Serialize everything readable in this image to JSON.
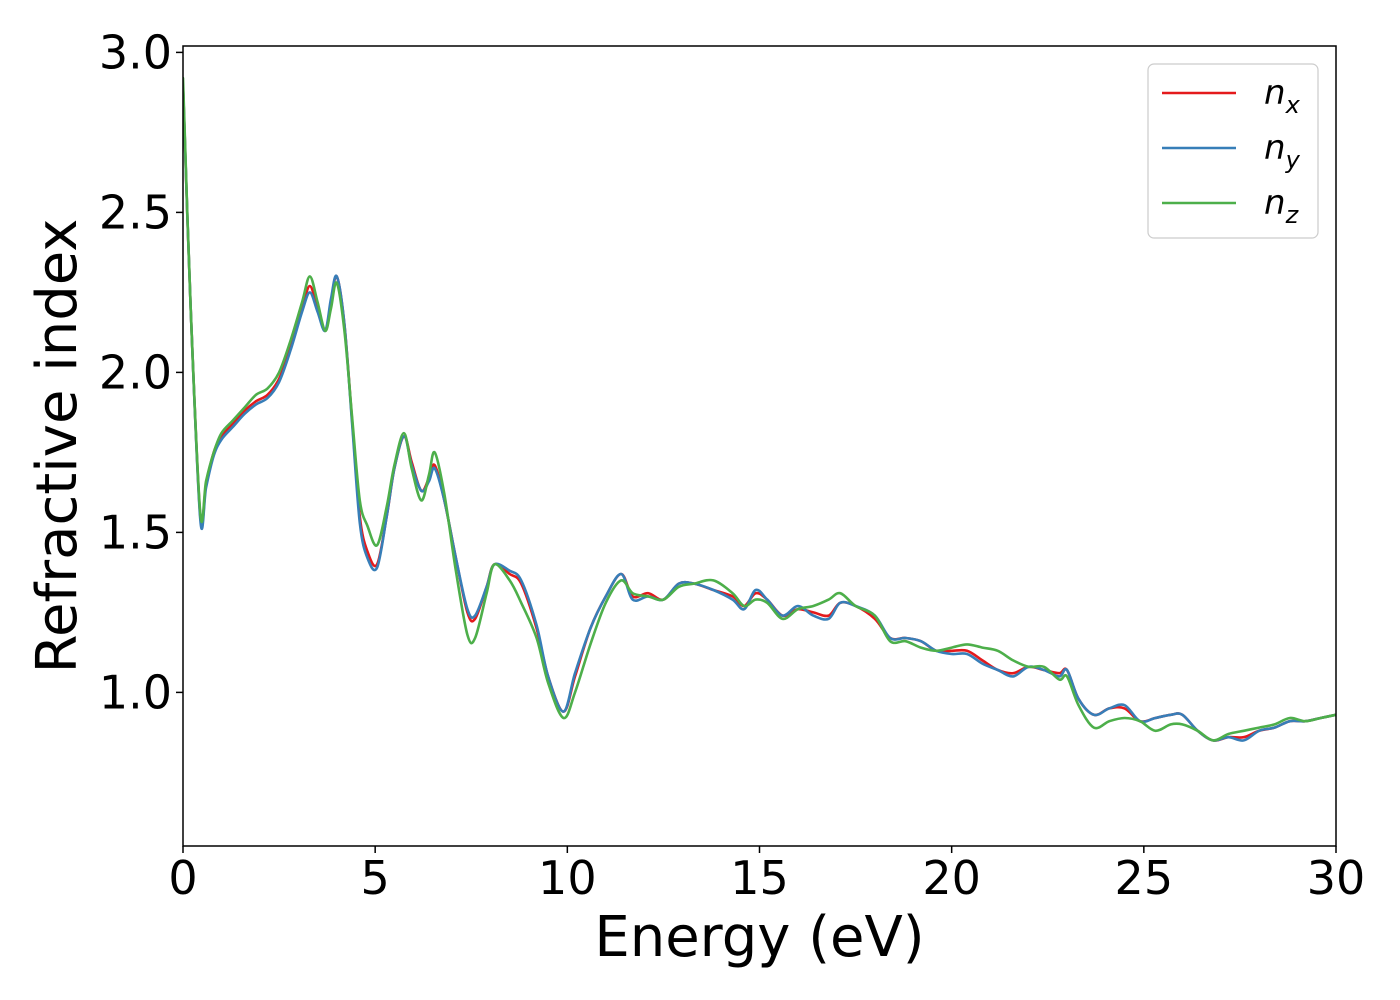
{
  "chart_data": {
    "type": "line",
    "xlabel": "Energy (eV)",
    "ylabel": "Refractive index",
    "xlim": [
      0,
      30
    ],
    "ylim": [
      0.52,
      3.02
    ],
    "xticks": [
      "0",
      "5",
      "10",
      "15",
      "20",
      "25",
      "30"
    ],
    "yticks": [
      "1.0",
      "1.5",
      "2.0",
      "2.5",
      "3.0"
    ],
    "grid": false,
    "legend_position": "top-right",
    "series": [
      {
        "name": "n_x",
        "legend_base": "n",
        "legend_sub": "x",
        "color": "#e41a1c",
        "x": [
          0.0,
          0.2,
          0.45,
          0.6,
          0.8,
          1.0,
          1.3,
          1.6,
          1.9,
          2.2,
          2.5,
          2.8,
          3.1,
          3.3,
          3.5,
          3.7,
          3.85,
          4.0,
          4.2,
          4.4,
          4.6,
          4.8,
          5.05,
          5.3,
          5.5,
          5.75,
          5.95,
          6.2,
          6.4,
          6.55,
          6.8,
          7.1,
          7.4,
          7.6,
          7.9,
          8.1,
          8.5,
          8.8,
          9.2,
          9.5,
          9.9,
          10.2,
          10.6,
          11.0,
          11.4,
          11.7,
          12.1,
          12.5,
          12.9,
          13.3,
          13.8,
          14.3,
          14.6,
          14.9,
          15.2,
          15.6,
          16.0,
          16.4,
          16.8,
          17.1,
          17.5,
          18.0,
          18.4,
          18.8,
          19.2,
          19.6,
          20.0,
          20.4,
          20.8,
          21.2,
          21.6,
          22.0,
          22.4,
          22.8,
          23.0,
          23.3,
          23.7,
          24.1,
          24.5,
          24.9,
          25.3,
          25.7,
          26.0,
          26.4,
          26.8,
          27.2,
          27.6,
          28.0,
          28.4,
          28.8,
          29.2,
          29.6,
          30.0
        ],
        "y": [
          2.9,
          2.2,
          1.55,
          1.65,
          1.75,
          1.8,
          1.84,
          1.88,
          1.91,
          1.93,
          1.98,
          2.08,
          2.2,
          2.27,
          2.2,
          2.13,
          2.22,
          2.3,
          2.15,
          1.85,
          1.55,
          1.44,
          1.4,
          1.55,
          1.7,
          1.8,
          1.72,
          1.63,
          1.67,
          1.71,
          1.6,
          1.42,
          1.25,
          1.23,
          1.33,
          1.4,
          1.37,
          1.34,
          1.2,
          1.05,
          0.94,
          1.05,
          1.2,
          1.3,
          1.37,
          1.3,
          1.31,
          1.29,
          1.34,
          1.34,
          1.32,
          1.3,
          1.27,
          1.31,
          1.29,
          1.24,
          1.26,
          1.25,
          1.24,
          1.28,
          1.27,
          1.23,
          1.17,
          1.17,
          1.16,
          1.13,
          1.13,
          1.13,
          1.1,
          1.07,
          1.06,
          1.08,
          1.07,
          1.06,
          1.07,
          0.98,
          0.93,
          0.95,
          0.95,
          0.91,
          0.92,
          0.93,
          0.93,
          0.88,
          0.85,
          0.86,
          0.86,
          0.88,
          0.89,
          0.91,
          0.91,
          0.92,
          0.93
        ]
      },
      {
        "name": "n_y",
        "legend_base": "n",
        "legend_sub": "y",
        "color": "#377eb8",
        "x": [
          0.0,
          0.2,
          0.45,
          0.6,
          0.8,
          1.0,
          1.3,
          1.6,
          1.9,
          2.2,
          2.5,
          2.8,
          3.1,
          3.3,
          3.5,
          3.7,
          3.85,
          4.0,
          4.2,
          4.4,
          4.6,
          4.8,
          5.05,
          5.3,
          5.5,
          5.75,
          5.95,
          6.2,
          6.4,
          6.55,
          6.8,
          7.1,
          7.4,
          7.6,
          7.9,
          8.1,
          8.5,
          8.8,
          9.2,
          9.5,
          9.9,
          10.2,
          10.6,
          11.0,
          11.4,
          11.7,
          12.1,
          12.5,
          12.9,
          13.3,
          13.8,
          14.3,
          14.6,
          14.9,
          15.2,
          15.6,
          16.0,
          16.4,
          16.8,
          17.1,
          17.5,
          18.0,
          18.4,
          18.8,
          19.2,
          19.6,
          20.0,
          20.4,
          20.8,
          21.2,
          21.6,
          22.0,
          22.4,
          22.8,
          23.0,
          23.3,
          23.7,
          24.1,
          24.5,
          24.9,
          25.3,
          25.7,
          26.0,
          26.4,
          26.8,
          27.2,
          27.6,
          28.0,
          28.4,
          28.8,
          29.2,
          29.6,
          30.0
        ],
        "y": [
          2.9,
          2.2,
          1.54,
          1.64,
          1.74,
          1.79,
          1.83,
          1.87,
          1.9,
          1.92,
          1.97,
          2.07,
          2.19,
          2.25,
          2.19,
          2.13,
          2.23,
          2.3,
          2.15,
          1.84,
          1.53,
          1.42,
          1.39,
          1.55,
          1.7,
          1.8,
          1.71,
          1.63,
          1.66,
          1.7,
          1.6,
          1.42,
          1.26,
          1.24,
          1.33,
          1.4,
          1.38,
          1.35,
          1.21,
          1.05,
          0.94,
          1.06,
          1.2,
          1.3,
          1.37,
          1.29,
          1.3,
          1.29,
          1.34,
          1.34,
          1.32,
          1.29,
          1.26,
          1.32,
          1.29,
          1.24,
          1.27,
          1.24,
          1.23,
          1.28,
          1.27,
          1.24,
          1.17,
          1.17,
          1.16,
          1.13,
          1.12,
          1.12,
          1.09,
          1.07,
          1.05,
          1.08,
          1.07,
          1.05,
          1.07,
          0.98,
          0.93,
          0.95,
          0.96,
          0.91,
          0.92,
          0.93,
          0.93,
          0.88,
          0.85,
          0.86,
          0.85,
          0.88,
          0.89,
          0.91,
          0.91,
          0.92,
          0.93
        ]
      },
      {
        "name": "n_z",
        "legend_base": "n",
        "legend_sub": "z",
        "color": "#4daf4a",
        "x": [
          0.0,
          0.2,
          0.45,
          0.6,
          0.8,
          1.0,
          1.3,
          1.6,
          1.9,
          2.2,
          2.5,
          2.8,
          3.1,
          3.3,
          3.5,
          3.7,
          3.85,
          4.0,
          4.2,
          4.4,
          4.6,
          4.8,
          5.05,
          5.3,
          5.5,
          5.75,
          5.95,
          6.2,
          6.4,
          6.55,
          6.8,
          7.1,
          7.4,
          7.6,
          7.9,
          8.1,
          8.5,
          8.8,
          9.2,
          9.5,
          9.9,
          10.2,
          10.6,
          11.0,
          11.4,
          11.7,
          12.1,
          12.5,
          12.9,
          13.3,
          13.8,
          14.3,
          14.6,
          14.9,
          15.2,
          15.6,
          16.0,
          16.4,
          16.8,
          17.1,
          17.5,
          18.0,
          18.4,
          18.8,
          19.2,
          19.6,
          20.0,
          20.4,
          20.8,
          21.2,
          21.6,
          22.0,
          22.4,
          22.8,
          23.0,
          23.3,
          23.7,
          24.1,
          24.5,
          24.9,
          25.3,
          25.7,
          26.0,
          26.4,
          26.8,
          27.2,
          27.6,
          28.0,
          28.4,
          28.8,
          29.2,
          29.6,
          30.0
        ],
        "y": [
          2.92,
          2.2,
          1.56,
          1.66,
          1.75,
          1.81,
          1.85,
          1.89,
          1.93,
          1.95,
          2.0,
          2.1,
          2.22,
          2.3,
          2.22,
          2.13,
          2.2,
          2.28,
          2.13,
          1.86,
          1.6,
          1.52,
          1.46,
          1.58,
          1.71,
          1.81,
          1.7,
          1.6,
          1.68,
          1.75,
          1.62,
          1.38,
          1.18,
          1.17,
          1.31,
          1.4,
          1.35,
          1.28,
          1.17,
          1.03,
          0.92,
          1.0,
          1.15,
          1.28,
          1.35,
          1.31,
          1.3,
          1.29,
          1.33,
          1.34,
          1.35,
          1.31,
          1.27,
          1.29,
          1.28,
          1.23,
          1.26,
          1.27,
          1.29,
          1.31,
          1.27,
          1.24,
          1.16,
          1.16,
          1.14,
          1.13,
          1.14,
          1.15,
          1.14,
          1.13,
          1.1,
          1.08,
          1.08,
          1.04,
          1.05,
          0.96,
          0.89,
          0.91,
          0.92,
          0.91,
          0.88,
          0.9,
          0.9,
          0.88,
          0.85,
          0.87,
          0.88,
          0.89,
          0.9,
          0.92,
          0.91,
          0.92,
          0.93
        ]
      }
    ]
  }
}
